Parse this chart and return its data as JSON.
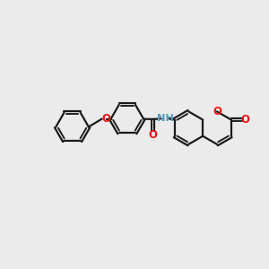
{
  "bg_color": "#ebebeb",
  "bond_color": "#1a1a1a",
  "o_color": "#ee1111",
  "n_color": "#5599bb",
  "lw": 1.6,
  "figsize": [
    3.0,
    3.0
  ],
  "dpi": 100,
  "xlim": [
    0,
    10
  ],
  "ylim": [
    1,
    9
  ]
}
